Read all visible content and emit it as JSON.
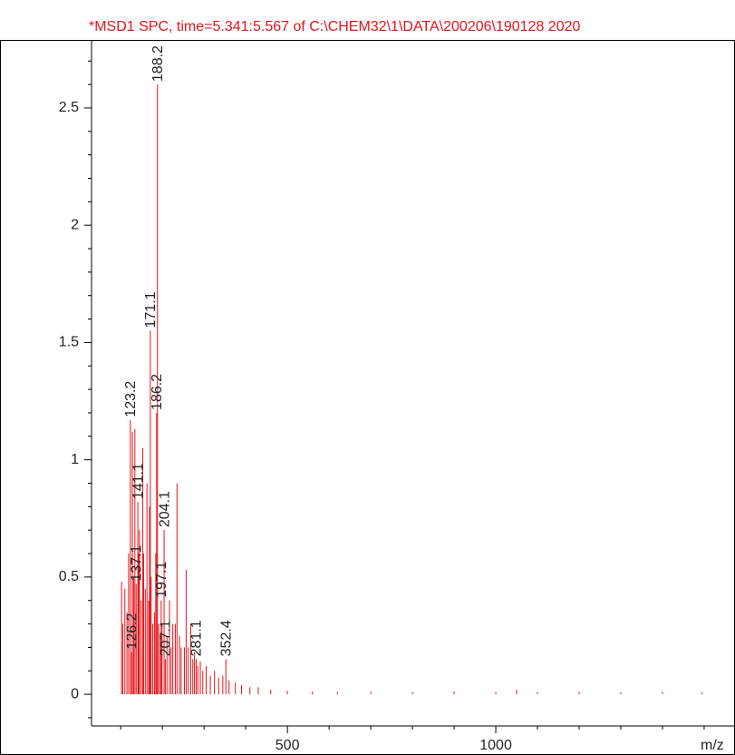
{
  "chart_data": {
    "type": "spectrum",
    "title": "*MSD1 SPC, time=5.341:5.567 of C:\\CHEM32\\1\\DATA\\200206\\190128 2020",
    "x_label": "m/z",
    "color": "#e8141a",
    "title_color": "#e8141a",
    "xlim": [
      30,
      1574
    ],
    "ylim": [
      -0.135,
      2.79
    ],
    "xticks": [
      500,
      1000
    ],
    "yticks": [
      0,
      0.5,
      1,
      1.5,
      2,
      2.5
    ],
    "xminorticks": [
      100,
      200,
      300,
      400,
      600,
      700,
      800,
      900,
      1100,
      1200,
      1300,
      1400,
      1500
    ],
    "yminorticks": [
      -0.1,
      0.1,
      0.2,
      0.3,
      0.4,
      0.6,
      0.7,
      0.8,
      0.9,
      1.1,
      1.2,
      1.3,
      1.4,
      1.6,
      1.7,
      1.8,
      1.9,
      2.1,
      2.2,
      2.3,
      2.4,
      2.6,
      2.7
    ],
    "labeled_peaks": {
      "x": [
        188.2,
        171.1,
        186.2,
        123.2,
        141.1,
        204.1,
        137.1,
        197.1,
        126.2,
        207.1,
        281.1,
        352.4
      ],
      "values": [
        2.6,
        1.55,
        1.2,
        1.17,
        0.82,
        0.7,
        0.47,
        0.4,
        0.18,
        0.15,
        0.15,
        0.15
      ]
    },
    "peaks": {
      "x": [
        102,
        105,
        110,
        115,
        119,
        128,
        131,
        134,
        143,
        145,
        149,
        153,
        155,
        159,
        163,
        167,
        169,
        173,
        177,
        181,
        184,
        191,
        195,
        199,
        211,
        217,
        221,
        225,
        231,
        235,
        241,
        245,
        253,
        257,
        262,
        268,
        273,
        277,
        285,
        291,
        297,
        305,
        315,
        325,
        335,
        345,
        360,
        375,
        390,
        410,
        430,
        460,
        500,
        560,
        620,
        700,
        800,
        900,
        1000,
        1050,
        1100,
        1200,
        1300,
        1400,
        1495
      ],
      "values": [
        0.48,
        0.3,
        0.45,
        0.35,
        0.6,
        1.12,
        0.5,
        1.13,
        0.6,
        0.7,
        0.4,
        1.05,
        0.6,
        0.45,
        0.9,
        0.4,
        0.8,
        0.5,
        0.3,
        0.35,
        0.6,
        0.3,
        0.25,
        0.3,
        0.25,
        0.4,
        0.2,
        0.3,
        0.3,
        0.9,
        0.25,
        0.2,
        0.2,
        0.53,
        0.2,
        0.3,
        0.15,
        0.18,
        0.12,
        0.14,
        0.1,
        0.12,
        0.08,
        0.1,
        0.07,
        0.08,
        0.06,
        0.05,
        0.04,
        0.03,
        0.03,
        0.02,
        0.015,
        0.012,
        0.01,
        0.01,
        0.01,
        0.012,
        0.01,
        0.02,
        0.01,
        0.01,
        0.008,
        0.01,
        0.008
      ]
    }
  }
}
